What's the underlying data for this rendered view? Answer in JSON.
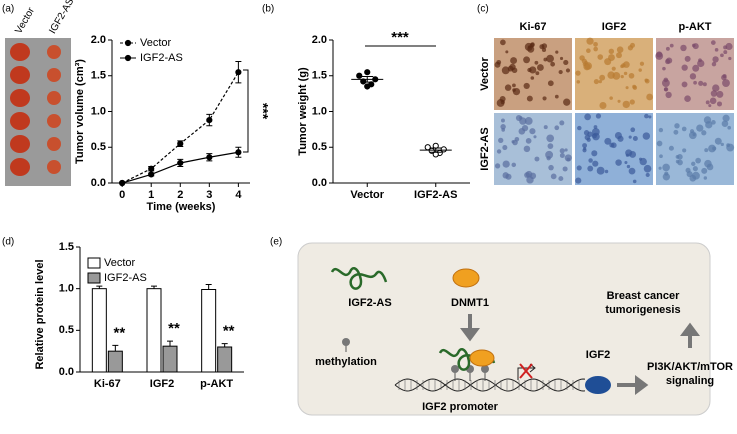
{
  "panel_labels": [
    "(a)",
    "(b)",
    "(c)",
    "(d)",
    "(e)"
  ],
  "photos": {
    "labels": [
      "Vector",
      "IGF2-AS"
    ]
  },
  "chart_data": [
    {
      "type": "line",
      "x_label": "Time (weeks)",
      "y_label": "Tumor volume (cm³)",
      "x": [
        0,
        1,
        2,
        3,
        4
      ],
      "xlim": [
        -0.35,
        4.4
      ],
      "xticks": [
        0,
        1,
        2,
        3,
        4
      ],
      "ylim": [
        0,
        2
      ],
      "yticks": [
        {
          "value": 0,
          "label": "0.0"
        },
        0.5,
        {
          "value": 1,
          "label": "1.0"
        },
        1.5,
        {
          "value": 2,
          "label": "2.0"
        }
      ],
      "legend": "upper left",
      "significance": "***",
      "series": [
        {
          "name": "Vector",
          "color": "#000000",
          "linestyle": "dashed",
          "values": [
            0,
            0.2,
            0.55,
            0.88,
            1.55
          ],
          "errors": [
            0,
            0.03,
            0.04,
            0.08,
            0.15
          ]
        },
        {
          "name": "IGF2-AS",
          "color": "#000000",
          "linestyle": "solid",
          "values": [
            0,
            0.12,
            0.28,
            0.36,
            0.43
          ],
          "errors": [
            0,
            0.02,
            0.05,
            0.05,
            0.07
          ]
        }
      ]
    },
    {
      "type": "strip",
      "y_label": "Tumor weight (g)",
      "categories": [
        "Vector",
        "IGF2-AS"
      ],
      "points": [
        [
          1.55,
          1.5,
          1.45,
          1.42,
          1.38,
          1.35
        ],
        [
          0.52,
          0.5,
          0.47,
          0.45,
          0.42,
          0.4
        ]
      ],
      "markers": [
        "filled",
        "open"
      ],
      "means": [
        1.45,
        0.46
      ],
      "errors": [
        0.04,
        0.03
      ],
      "ylim": [
        0,
        2
      ],
      "yticks": [
        {
          "value": 0,
          "label": "0.0"
        },
        0.5,
        {
          "value": 1,
          "label": "1.0"
        },
        1.5,
        {
          "value": 2,
          "label": "2.0"
        }
      ],
      "significance": "***"
    },
    {
      "type": "bar",
      "y_label": "Relative protein level",
      "categories": [
        "Ki-67",
        "IGF2",
        "p-AKT"
      ],
      "ylim": [
        0,
        1.5
      ],
      "yticks": [
        {
          "value": 0,
          "label": "0.0"
        },
        0.5,
        {
          "value": 1,
          "label": "1.0"
        },
        1.5
      ],
      "legend": "upper left",
      "annotations": [
        "**",
        "**",
        "**"
      ],
      "series": [
        {
          "name": "Vector",
          "color": "#ffffff",
          "values": [
            1.0,
            1.0,
            0.99
          ],
          "errors": [
            0.03,
            0.03,
            0.06
          ]
        },
        {
          "name": "IGF2-AS",
          "color": "#999999",
          "values": [
            0.25,
            0.31,
            0.3
          ],
          "errors": [
            0.07,
            0.06,
            0.04
          ]
        }
      ]
    }
  ],
  "ihc": {
    "columns": [
      "Ki-67",
      "IGF2",
      "p-AKT"
    ],
    "rows": [
      "Vector",
      "IGF2-AS"
    ]
  },
  "diagram": {
    "igf2_as": "IGF2-AS",
    "dnmt1": "DNMT1",
    "methylation": "methylation",
    "promoter": "IGF2  promoter",
    "igf2": "IGF2",
    "pathway": [
      "PI3K/AKT/mTOR",
      "signaling"
    ],
    "outcome": [
      "Breast cancer",
      "tumorigenesis"
    ]
  }
}
